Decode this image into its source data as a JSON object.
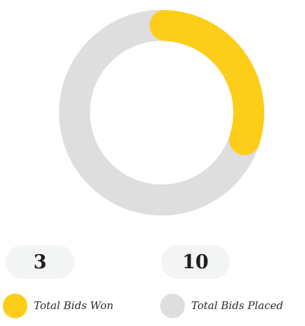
{
  "chart_data": {
    "type": "donut",
    "segments": [
      {
        "name": "Total Bids Won",
        "value": 3,
        "color": "#FDCE19"
      }
    ],
    "total": 10,
    "track_color": "#DEDEDE"
  },
  "stats": {
    "won_value": "3",
    "placed_value": "10"
  },
  "legend": {
    "won_label": "Total Bids Won",
    "placed_label": "Total Bids Placed",
    "won_color": "#FDCE19",
    "placed_color": "#DEDEDE"
  }
}
